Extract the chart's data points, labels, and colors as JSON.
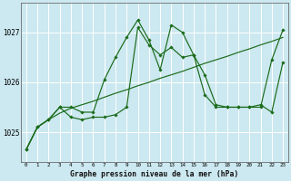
{
  "title": "Graphe pression niveau de la mer (hPa)",
  "bg_color": "#cce8f0",
  "grid_color": "#ffffff",
  "line_color": "#1a6b1a",
  "marker_color": "#1a6b1a",
  "x_labels": [
    "0",
    "1",
    "2",
    "3",
    "4",
    "5",
    "6",
    "7",
    "8",
    "9",
    "10",
    "11",
    "12",
    "13",
    "14",
    "15",
    "16",
    "17",
    "18",
    "19",
    "20",
    "21",
    "22",
    "23"
  ],
  "ylim": [
    1024.4,
    1027.6
  ],
  "yticks": [
    1025,
    1026,
    1027
  ],
  "series_trend": [
    1024.65,
    1025.1,
    1025.25,
    1025.38,
    1025.48,
    1025.55,
    1025.62,
    1025.7,
    1025.78,
    1025.85,
    1025.93,
    1026.0,
    1026.08,
    1026.15,
    1026.22,
    1026.3,
    1026.38,
    1026.45,
    1026.52,
    1026.6,
    1026.67,
    1026.75,
    1026.82,
    1026.9
  ],
  "series_a": [
    1024.65,
    1025.1,
    1025.25,
    1025.5,
    1025.3,
    1025.25,
    1025.3,
    1025.3,
    1025.35,
    1025.5,
    1027.1,
    1026.75,
    1026.55,
    1026.7,
    1026.5,
    1026.55,
    1026.15,
    1025.55,
    1025.5,
    1025.5,
    1025.5,
    1025.55,
    1025.4,
    1026.4
  ],
  "series_b": [
    1024.65,
    1025.1,
    1025.25,
    1025.5,
    1025.5,
    1025.4,
    1025.4,
    1026.05,
    1026.5,
    1026.9,
    1027.25,
    1026.85,
    1026.25,
    1027.15,
    1027.0,
    1026.55,
    1025.75,
    1025.5,
    1025.5,
    1025.5,
    1025.5,
    1025.5,
    1026.45,
    1027.05
  ]
}
